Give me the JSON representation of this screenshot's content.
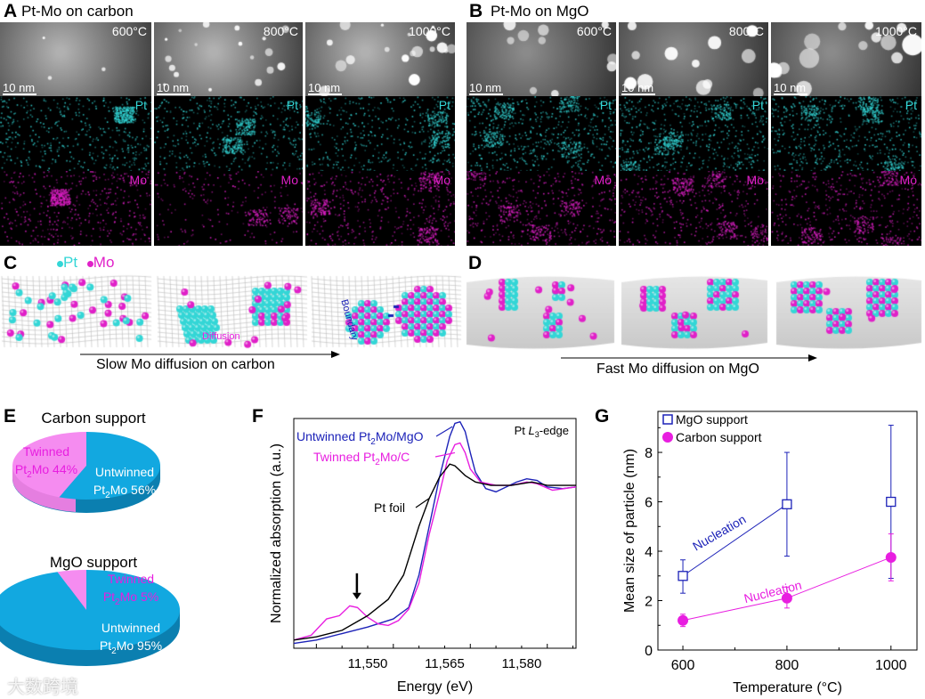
{
  "panels": {
    "A": {
      "letter": "A",
      "title": "Pt-Mo on carbon",
      "temps": [
        "600°C",
        "800°C",
        "1000°C"
      ],
      "scale_bar": "10 nm",
      "pt_label": "Pt",
      "mo_label": "Mo"
    },
    "B": {
      "letter": "B",
      "title": "Pt-Mo on MgO",
      "temps": [
        "600°C",
        "800°C",
        "1000°C"
      ],
      "scale_bar": "10 nm",
      "pt_label": "Pt",
      "mo_label": "Mo"
    },
    "C": {
      "letter": "C",
      "legend_pt": "Pt",
      "legend_mo": "Mo",
      "diffusion_label": "Diffusion",
      "boundary_label": "Boundary",
      "caption": "Slow Mo diffusion on carbon"
    },
    "D": {
      "letter": "D",
      "caption": "Fast Mo diffusion on MgO"
    },
    "E": {
      "letter": "E"
    },
    "F": {
      "letter": "F"
    },
    "G": {
      "letter": "G"
    }
  },
  "colors": {
    "pt": "#33d6d6",
    "mo": "#e020c8",
    "blue": "#1c22b8",
    "magenta": "#e81ee0",
    "pie_blue": "#12a8e0",
    "pie_pink": "#f58cf0"
  },
  "watermark": "大数跨境",
  "chart_data": [
    {
      "type": "pie",
      "panel": "E",
      "charts": [
        {
          "title": "Carbon support",
          "slices": [
            {
              "label_line1": "Twinned",
              "label_line2": "Pt",
              "sub": "2",
              "label_line2_rest": "Mo 44%",
              "value": 44
            },
            {
              "label_line1": "Untwinned",
              "label_line2": "Pt",
              "sub": "2",
              "label_line2_rest": "Mo 56%",
              "value": 56
            }
          ]
        },
        {
          "title": "MgO support",
          "slices": [
            {
              "label_line1": "Twinned",
              "label_line2": "Pt",
              "sub": "2",
              "label_line2_rest": "Mo 5%",
              "value": 5
            },
            {
              "label_line1": "Untwinned",
              "label_line2": "Pt",
              "sub": "2",
              "label_line2_rest": "Mo 95%",
              "value": 95
            }
          ]
        }
      ]
    },
    {
      "type": "line",
      "panel": "F",
      "annotation": "Pt L3-edge",
      "annotation_parts": [
        "Pt ",
        "L",
        "3",
        "-edge"
      ],
      "xlabel": "Energy (eV)",
      "ylabel": "Normalized absorption (a.u.)",
      "xlim": [
        11535.6,
        11590.6
      ],
      "ylim": [
        0,
        1.41
      ],
      "xticks": [
        11550,
        11565,
        11580
      ],
      "xtick_labels": [
        "11,550",
        "11,565",
        "11,580"
      ],
      "series": [
        {
          "name": "Untwinned Pt2Mo/MgO",
          "name_parts": [
            "Untwinned Pt",
            "2",
            "Mo/MgO"
          ],
          "color": "#1c22b8",
          "x": [
            11535.6,
            11540,
            11545,
            11550,
            11555,
            11558,
            11560,
            11562,
            11564,
            11566,
            11567,
            11568,
            11569,
            11570,
            11571,
            11573,
            11575,
            11577,
            11579,
            11581,
            11583,
            11585,
            11588,
            11590.6
          ],
          "y": [
            0.03,
            0.05,
            0.09,
            0.13,
            0.18,
            0.25,
            0.45,
            0.75,
            1.05,
            1.3,
            1.38,
            1.39,
            1.33,
            1.2,
            1.08,
            0.98,
            0.96,
            0.99,
            1.02,
            1.04,
            1.03,
            0.99,
            0.98,
            0.99
          ]
        },
        {
          "name": "Twinned Pt2Mo/C",
          "name_parts": [
            "Twinned Pt",
            "2",
            "Mo/C"
          ],
          "color": "#e81ee0",
          "x": [
            11535.6,
            11539,
            11542,
            11544.5,
            11546.5,
            11548,
            11550,
            11552,
            11554,
            11556,
            11558,
            11560,
            11562,
            11564,
            11565.5,
            11567,
            11568,
            11569,
            11570,
            11572,
            11575,
            11578,
            11581,
            11583,
            11586,
            11590.6
          ],
          "y": [
            0.05,
            0.08,
            0.18,
            0.2,
            0.26,
            0.25,
            0.19,
            0.15,
            0.14,
            0.17,
            0.24,
            0.4,
            0.7,
            0.95,
            1.15,
            1.25,
            1.26,
            1.2,
            1.1,
            1.02,
            1.0,
            1.0,
            1.02,
            1.01,
            0.97,
            0.99
          ]
        },
        {
          "name": "Pt foil",
          "name_parts": [
            "Pt foil"
          ],
          "color": "#000000",
          "x": [
            11535.6,
            11540,
            11545,
            11550,
            11554,
            11557,
            11560,
            11562,
            11564,
            11566,
            11567,
            11569,
            11571,
            11574,
            11578,
            11582,
            11585,
            11590.6
          ],
          "y": [
            0.05,
            0.07,
            0.11,
            0.2,
            0.3,
            0.45,
            0.75,
            0.92,
            1.05,
            1.13,
            1.12,
            1.06,
            1.02,
            1.0,
            1.0,
            1.02,
            1.0,
            1.0
          ]
        }
      ],
      "arrow_marker_x": 11547.9
    },
    {
      "type": "scatter",
      "panel": "G",
      "xlabel": "Temperature (°C)",
      "ylabel": "Mean size of particle (nm)",
      "xlim": [
        552,
        1050
      ],
      "ylim": [
        0,
        9.66
      ],
      "xticks": [
        600,
        800,
        1000
      ],
      "yticks": [
        0,
        2,
        4,
        6,
        8
      ],
      "annotations": [
        "Nucleation",
        "Nucleation"
      ],
      "series": [
        {
          "name": "MgO support",
          "marker": "open-square",
          "color": "#1c22b8",
          "x": [
            600,
            800,
            1000
          ],
          "y": [
            3.0,
            5.9,
            6.0
          ],
          "err_low": [
            2.3,
            3.8,
            2.9
          ],
          "err_high": [
            3.65,
            8.0,
            9.1
          ],
          "connected_points": 2
        },
        {
          "name": "Carbon support",
          "marker": "filled-circle",
          "color": "#e81ee0",
          "x": [
            600,
            800,
            1000
          ],
          "y": [
            1.2,
            2.1,
            3.75
          ],
          "err_low": [
            0.95,
            1.7,
            2.8
          ],
          "err_high": [
            1.45,
            2.55,
            4.7
          ],
          "connected_points": 3
        }
      ]
    }
  ]
}
